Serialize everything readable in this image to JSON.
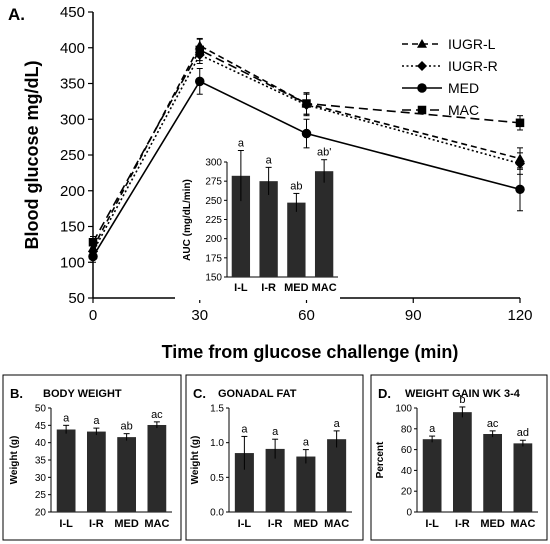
{
  "main": {
    "panel_letter": "A.",
    "legend": [
      "IUGR-L",
      "IUGR-R",
      "MED",
      "MAC"
    ]
  },
  "inset": {},
  "panels": [
    {
      "letter": "B.",
      "title": "BODY WEIGHT"
    },
    {
      "letter": "C.",
      "title": "GONADAL FAT"
    },
    {
      "letter": "D.",
      "title": "WEIGHT GAIN WK 3-4"
    }
  ],
  "chart_data": [
    {
      "type": "line",
      "xlabel": "Time from glucose challenge (min)",
      "ylabel": "Blood glucose mg/dL)",
      "x": [
        0,
        30,
        60,
        120
      ],
      "xticks": [
        0,
        30,
        60,
        90,
        120
      ],
      "xlim": [
        0,
        120
      ],
      "ylim": [
        50,
        450
      ],
      "yticks": [
        50,
        100,
        150,
        200,
        250,
        300,
        350,
        400,
        450
      ],
      "grid": false,
      "legend_position": "top-right",
      "series": [
        {
          "name": "IUGR-L",
          "marker": "triangle",
          "dash": "dashed",
          "values": [
            120,
            403,
            322,
            245
          ],
          "errors": [
            8,
            10,
            15,
            15
          ]
        },
        {
          "name": "IUGR-R",
          "marker": "diamond",
          "dash": "dotted",
          "values": [
            115,
            390,
            320,
            238
          ],
          "errors": [
            8,
            12,
            15,
            15
          ]
        },
        {
          "name": "MED",
          "marker": "circle",
          "dash": "solid",
          "values": [
            108,
            353,
            280,
            202
          ],
          "errors": [
            8,
            18,
            20,
            30
          ]
        },
        {
          "name": "MAC",
          "marker": "square",
          "dash": "long-dash",
          "values": [
            128,
            397,
            322,
            295
          ],
          "errors": [
            8,
            15,
            15,
            10
          ]
        }
      ]
    },
    {
      "type": "bar",
      "ylabel": "AUC (mg/dL/min)",
      "categories": [
        "I-L",
        "I-R",
        "MED",
        "MAC"
      ],
      "values": [
        282,
        275,
        247,
        288
      ],
      "errors": [
        33,
        18,
        12,
        15
      ],
      "labels": [
        "a",
        "a",
        "ab",
        "ab'"
      ],
      "ylim": [
        150,
        300
      ],
      "yticks": [
        150,
        175,
        200,
        225,
        250,
        275,
        300
      ]
    },
    {
      "type": "bar",
      "title": "BODY WEIGHT",
      "ylabel": "Weight (g)",
      "categories": [
        "I-L",
        "I-R",
        "MED",
        "MAC"
      ],
      "values": [
        43.8,
        43.2,
        41.6,
        45.1
      ],
      "errors": [
        1.2,
        1.0,
        1.0,
        0.9
      ],
      "labels": [
        "a",
        "a",
        "ab",
        "ac"
      ],
      "ylim": [
        20,
        50
      ],
      "yticks": [
        20,
        25,
        30,
        35,
        40,
        45,
        50
      ]
    },
    {
      "type": "bar",
      "title": "GONADAL FAT",
      "ylabel": "Weight (g)",
      "categories": [
        "I-L",
        "I-R",
        "MED",
        "MAC"
      ],
      "values": [
        0.85,
        0.91,
        0.8,
        1.05
      ],
      "errors": [
        0.24,
        0.14,
        0.1,
        0.12
      ],
      "labels": [
        "a",
        "a",
        "a",
        "a"
      ],
      "ylim": [
        0,
        1.5
      ],
      "yticks": [
        0,
        0.5,
        1.0,
        1.5
      ],
      "ytick_labels": [
        "0.0",
        "0.5",
        "1.0",
        "1.5"
      ]
    },
    {
      "type": "bar",
      "title": "WEIGHT GAIN WK 3-4",
      "ylabel": "Percent",
      "categories": [
        "I-L",
        "I-R",
        "MED",
        "MAC"
      ],
      "values": [
        70,
        96,
        75,
        66
      ],
      "errors": [
        3,
        5,
        3,
        3
      ],
      "labels": [
        "a",
        "b",
        "ac",
        "ad"
      ],
      "ylim": [
        0,
        100
      ],
      "yticks": [
        0,
        20,
        40,
        60,
        80,
        100
      ]
    }
  ]
}
